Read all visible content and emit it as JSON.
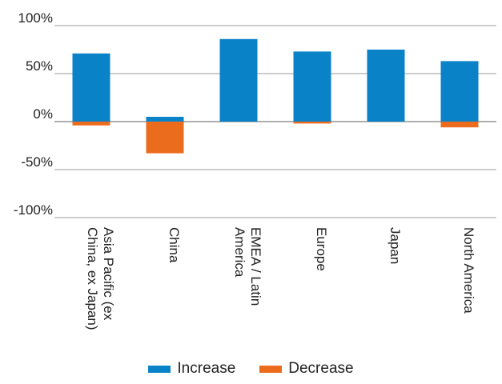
{
  "chart_data": {
    "type": "bar",
    "stacked": true,
    "categories": [
      [
        "Asia Pacific (ex",
        "China, ex Japan)"
      ],
      [
        "China"
      ],
      [
        "EMEA / Latin",
        "America"
      ],
      [
        "Europe"
      ],
      [
        "Japan"
      ],
      [
        "North America"
      ]
    ],
    "series": [
      {
        "name": "Increase",
        "color": "#0a82c8",
        "values": [
          71,
          5,
          86,
          73,
          75,
          63
        ]
      },
      {
        "name": "Decrease",
        "color": "#ec6c1e",
        "values": [
          -4,
          -33,
          0,
          -2,
          0,
          -6
        ]
      }
    ],
    "yticks": [
      100,
      50,
      0,
      -50,
      -100
    ],
    "ytick_labels": [
      "100%",
      "50%",
      "0%",
      "-50%",
      "-100%"
    ],
    "ylim": [
      -100,
      100
    ],
    "grid": true,
    "legend": "bottom-center"
  }
}
